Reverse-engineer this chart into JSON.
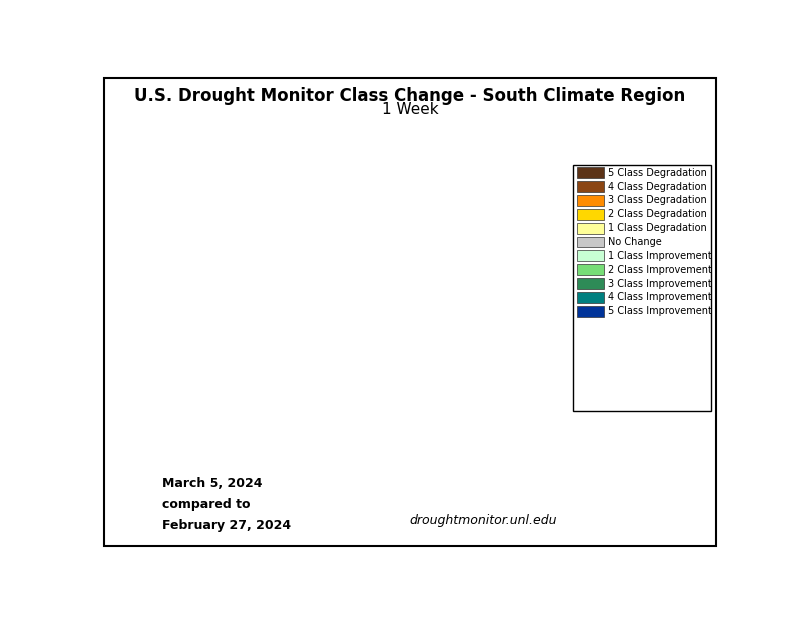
{
  "title_line1": "U.S. Drought Monitor Class Change - South Climate Region",
  "title_line2": "1 Week",
  "date_text": "March 5, 2024\ncompared to\nFebruary 27, 2024",
  "website": "droughtmonitor.unl.edu",
  "legend_entries": [
    {
      "label": "5 Class Degradation",
      "color": "#5C3317"
    },
    {
      "label": "4 Class Degradation",
      "color": "#8B4513"
    },
    {
      "label": "3 Class Degradation",
      "color": "#FF8C00"
    },
    {
      "label": "2 Class Degradation",
      "color": "#FFD700"
    },
    {
      "label": "1 Class Degradation",
      "color": "#FFFF99"
    },
    {
      "label": "No Change",
      "color": "#C8C8C8"
    },
    {
      "label": "1 Class Improvement",
      "color": "#C8FFD4"
    },
    {
      "label": "2 Class Improvement",
      "color": "#77DD77"
    },
    {
      "label": "3 Class Improvement",
      "color": "#2E8B57"
    },
    {
      "label": "4 Class Improvement",
      "color": "#008080"
    },
    {
      "label": "5 Class Improvement",
      "color": "#003399"
    }
  ],
  "background_color": "#FFFFFF",
  "border_color": "#000000",
  "fig_width": 8.0,
  "fig_height": 6.18
}
